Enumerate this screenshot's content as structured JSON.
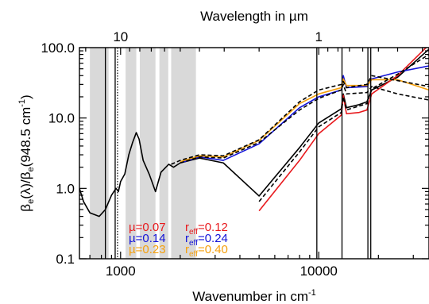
{
  "chart_data": {
    "type": "line",
    "title": "",
    "xlabel": "Wavenumber in cm",
    "xlabel_sup": "-1",
    "top_xlabel": "Wavelength in µm",
    "ylabel_parts": [
      "β",
      "e",
      "(λ)/β",
      "e",
      "(948.5 cm",
      "-1",
      ")"
    ],
    "xscale": "log",
    "yscale": "log",
    "xlim": [
      620,
      36000
    ],
    "ylim": [
      0.1,
      100
    ],
    "x_tick_labels": [
      {
        "value": 1000,
        "label": "1000"
      },
      {
        "value": 10000,
        "label": "10000"
      }
    ],
    "y_tick_labels": [
      {
        "value": 0.1,
        "label": "0.1"
      },
      {
        "value": 1,
        "label": "1.0"
      },
      {
        "value": 10,
        "label": "10.0"
      },
      {
        "value": 100,
        "label": "100.0"
      }
    ],
    "top_tick_labels": [
      {
        "value": 1000,
        "label": "10"
      },
      {
        "value": 10000,
        "label": "1"
      }
    ],
    "shaded_bands": [
      [
        700,
        870
      ],
      [
        1060,
        1200
      ],
      [
        1250,
        1500
      ],
      [
        1570,
        1740
      ],
      [
        1800,
        2400
      ]
    ],
    "shade_color": "#d9d9d9",
    "vlines_solid": [
      838,
      939,
      9780,
      13100,
      17700,
      18300
    ],
    "vlines_dotted": [
      965
    ],
    "legend": [
      {
        "mu": "µ=0.07",
        "reff_pre": "r",
        "reff_sub": "eff",
        "reff_val": "=0.12",
        "color": "#e8191d"
      },
      {
        "mu": "µ=0.14",
        "reff_pre": "r",
        "reff_sub": "eff",
        "reff_val": "=0.24",
        "color": "#1313d8"
      },
      {
        "mu": "µ=0.23",
        "reff_pre": "r",
        "reff_sub": "eff",
        "reff_val": "=0.40",
        "color": "#f5a00e"
      }
    ],
    "series": [
      {
        "color": "#000000",
        "dash": "none",
        "points": [
          [
            620,
            1.0
          ],
          [
            650,
            0.65
          ],
          [
            700,
            0.45
          ],
          [
            780,
            0.4
          ],
          [
            838,
            0.5
          ],
          [
            900,
            0.8
          ],
          [
            948.5,
            1.0
          ],
          [
            975,
            0.9
          ],
          [
            1000,
            1.25
          ],
          [
            1050,
            1.6
          ],
          [
            1100,
            3.0
          ],
          [
            1150,
            4.5
          ],
          [
            1200,
            6.2
          ],
          [
            1240,
            5.0
          ],
          [
            1300,
            2.5
          ],
          [
            1400,
            1.55
          ],
          [
            1500,
            0.9
          ],
          [
            1600,
            1.7
          ],
          [
            1750,
            2.2
          ],
          [
            1850,
            2.0
          ],
          [
            2000,
            2.3
          ],
          [
            2500,
            2.7
          ],
          [
            3300,
            2.3
          ],
          [
            5000,
            0.78
          ],
          [
            8000,
            3.8
          ],
          [
            10000,
            8.5
          ],
          [
            13000,
            13.5
          ],
          [
            13300,
            22.0
          ],
          [
            13800,
            14.0
          ],
          [
            16000,
            15.5
          ],
          [
            17500,
            17.0
          ],
          [
            18500,
            25.0
          ],
          [
            25000,
            38.0
          ],
          [
            36000,
            95.0
          ]
        ]
      },
      {
        "color": "#e8191d",
        "dash": "none",
        "points": [
          [
            5000,
            0.48
          ],
          [
            8000,
            2.5
          ],
          [
            10000,
            6.0
          ],
          [
            13000,
            11.0
          ],
          [
            13300,
            21.0
          ],
          [
            13800,
            11.5
          ],
          [
            16000,
            12.0
          ],
          [
            17500,
            13.0
          ],
          [
            18500,
            22.0
          ],
          [
            25000,
            40.0
          ],
          [
            36000,
            110.0
          ]
        ]
      },
      {
        "color": "#1313d8",
        "dash": "none",
        "points": [
          [
            2000,
            2.3
          ],
          [
            2500,
            2.8
          ],
          [
            3300,
            2.5
          ],
          [
            5000,
            4.3
          ],
          [
            8000,
            14.0
          ],
          [
            10000,
            20.0
          ],
          [
            13000,
            25.0
          ],
          [
            13300,
            40.0
          ],
          [
            13800,
            27.0
          ],
          [
            17500,
            28.0
          ],
          [
            18500,
            36.0
          ],
          [
            25000,
            45.0
          ],
          [
            36000,
            55.0
          ]
        ]
      },
      {
        "color": "#f5a00e",
        "dash": "none",
        "points": [
          [
            2000,
            2.4
          ],
          [
            2500,
            2.9
          ],
          [
            3300,
            2.8
          ],
          [
            5000,
            4.8
          ],
          [
            8000,
            16.0
          ],
          [
            10000,
            22.0
          ],
          [
            13000,
            27.0
          ],
          [
            13300,
            36.0
          ],
          [
            13800,
            29.0
          ],
          [
            17500,
            29.0
          ],
          [
            18500,
            35.0
          ],
          [
            25000,
            35.0
          ],
          [
            36000,
            25.0
          ]
        ]
      },
      {
        "color": "#000000",
        "dash": "5,3",
        "points": [
          [
            1800,
            2.2
          ],
          [
            2000,
            2.5
          ],
          [
            2500,
            3.0
          ],
          [
            3300,
            2.9
          ],
          [
            5000,
            4.9
          ],
          [
            8000,
            17.0
          ],
          [
            10000,
            25.0
          ],
          [
            13000,
            30.0
          ],
          [
            13300,
            33.0
          ],
          [
            13800,
            27.0
          ],
          [
            17500,
            30.0
          ],
          [
            18500,
            40.0
          ],
          [
            25000,
            34.0
          ],
          [
            36000,
            28.0
          ]
        ]
      },
      {
        "color": "#000000",
        "dash": "5,3",
        "points": [
          [
            2000,
            2.3
          ],
          [
            2500,
            2.8
          ],
          [
            3300,
            2.7
          ],
          [
            5000,
            4.5
          ],
          [
            8000,
            13.0
          ],
          [
            10000,
            19.0
          ],
          [
            13000,
            25.0
          ],
          [
            13300,
            30.0
          ],
          [
            13800,
            22.0
          ],
          [
            17500,
            23.0
          ],
          [
            18500,
            28.0
          ],
          [
            25000,
            22.0
          ],
          [
            36000,
            18.0
          ]
        ]
      },
      {
        "color": "#000000",
        "dash": "5,3",
        "points": [
          [
            5000,
            0.65
          ],
          [
            8000,
            3.3
          ],
          [
            10000,
            7.5
          ],
          [
            13000,
            12.0
          ],
          [
            13300,
            20.0
          ],
          [
            13800,
            13.0
          ],
          [
            17500,
            16.0
          ],
          [
            18500,
            26.0
          ],
          [
            25000,
            42.0
          ],
          [
            36000,
            80.0
          ]
        ]
      }
    ]
  }
}
